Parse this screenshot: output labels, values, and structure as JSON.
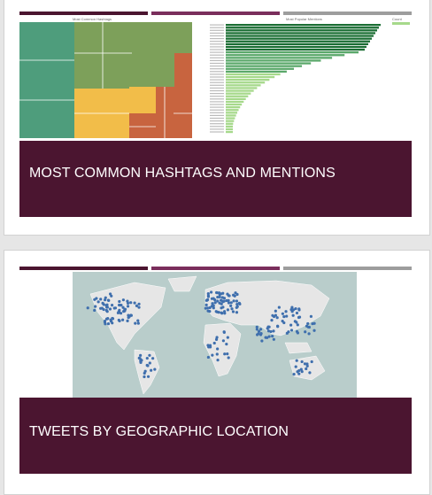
{
  "slides": [
    {
      "title": "MOST COMMON HASHTAGS AND MENTIONS",
      "treemap_title": "Most Common Hashtags",
      "bar_chart_title": "Most Popular Mentions",
      "bar_chart_legend": "Count"
    },
    {
      "title": "TWEETS BY GEOGRAPHIC LOCATION"
    }
  ],
  "colors": {
    "banner": "#4b1530",
    "accent_bar_1": "#4b1530",
    "accent_bar_2": "#7a2e5c",
    "accent_bar_3": "#9d9d9d",
    "treemap_green": "#4e9d7c",
    "treemap_olive": "#7da05a",
    "treemap_yellow": "#f2bd49",
    "treemap_orange": "#c8643f",
    "bar_dark_green": "#1b6e34",
    "bar_light_green": "#a6d98b",
    "map_land": "#e6e6e6",
    "map_water": "#b9cdcb",
    "map_points": "#3f6fad"
  }
}
